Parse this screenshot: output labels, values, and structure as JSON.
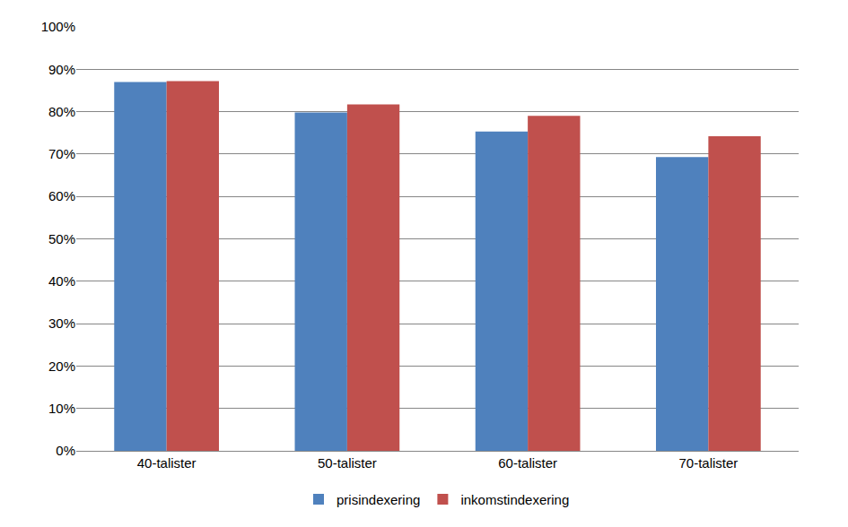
{
  "chart_data": {
    "type": "bar",
    "categories": [
      "40-talister",
      "50-talister",
      "60-talister",
      "70-talister"
    ],
    "series": [
      {
        "name": "prisindexering",
        "color": "#4f81bd",
        "values": [
          87,
          79.8,
          75.3,
          69.3
        ]
      },
      {
        "name": "inkomstindexering",
        "color": "#c0504d",
        "values": [
          87.2,
          81.7,
          79,
          74.2
        ]
      }
    ],
    "ylim": [
      0,
      100
    ],
    "yticks": [
      {
        "value": 0,
        "label": "0%"
      },
      {
        "value": 10,
        "label": "10%"
      },
      {
        "value": 20,
        "label": "20%"
      },
      {
        "value": 30,
        "label": "30%"
      },
      {
        "value": 40,
        "label": "40%"
      },
      {
        "value": 50,
        "label": "50%"
      },
      {
        "value": 60,
        "label": "60%"
      },
      {
        "value": 70,
        "label": "70%"
      },
      {
        "value": 80,
        "label": "80%"
      },
      {
        "value": 90,
        "label": "90%"
      },
      {
        "value": 100,
        "label": "100%"
      }
    ],
    "grid": true,
    "legend": "bottom"
  }
}
